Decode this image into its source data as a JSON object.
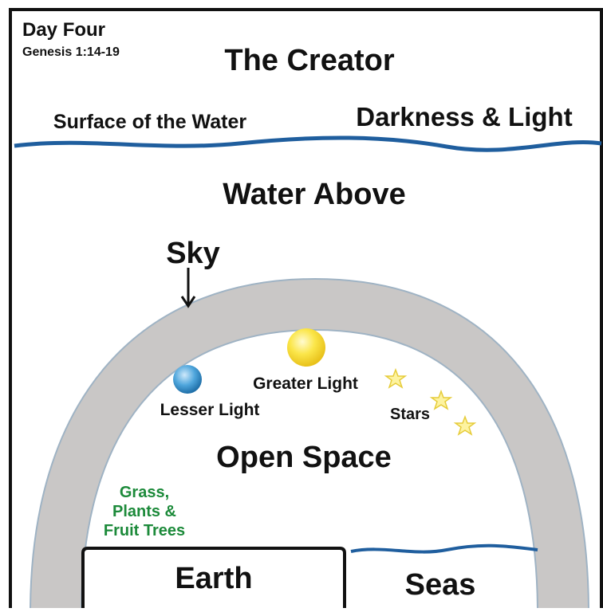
{
  "header": {
    "title": "Day Four",
    "reference": "Genesis 1:14-19"
  },
  "labels": {
    "creator": "The Creator",
    "surface": "Surface of the Water",
    "darkness": "Darkness & Light",
    "water_above": "Water Above",
    "sky": "Sky",
    "greater_light": "Greater Light",
    "lesser_light": "Lesser Light",
    "stars": "Stars",
    "open_space": "Open Space",
    "vegetation": [
      "Grass,",
      "Plants &",
      "Fruit Trees"
    ],
    "earth": "Earth",
    "seas": "Seas"
  }
}
